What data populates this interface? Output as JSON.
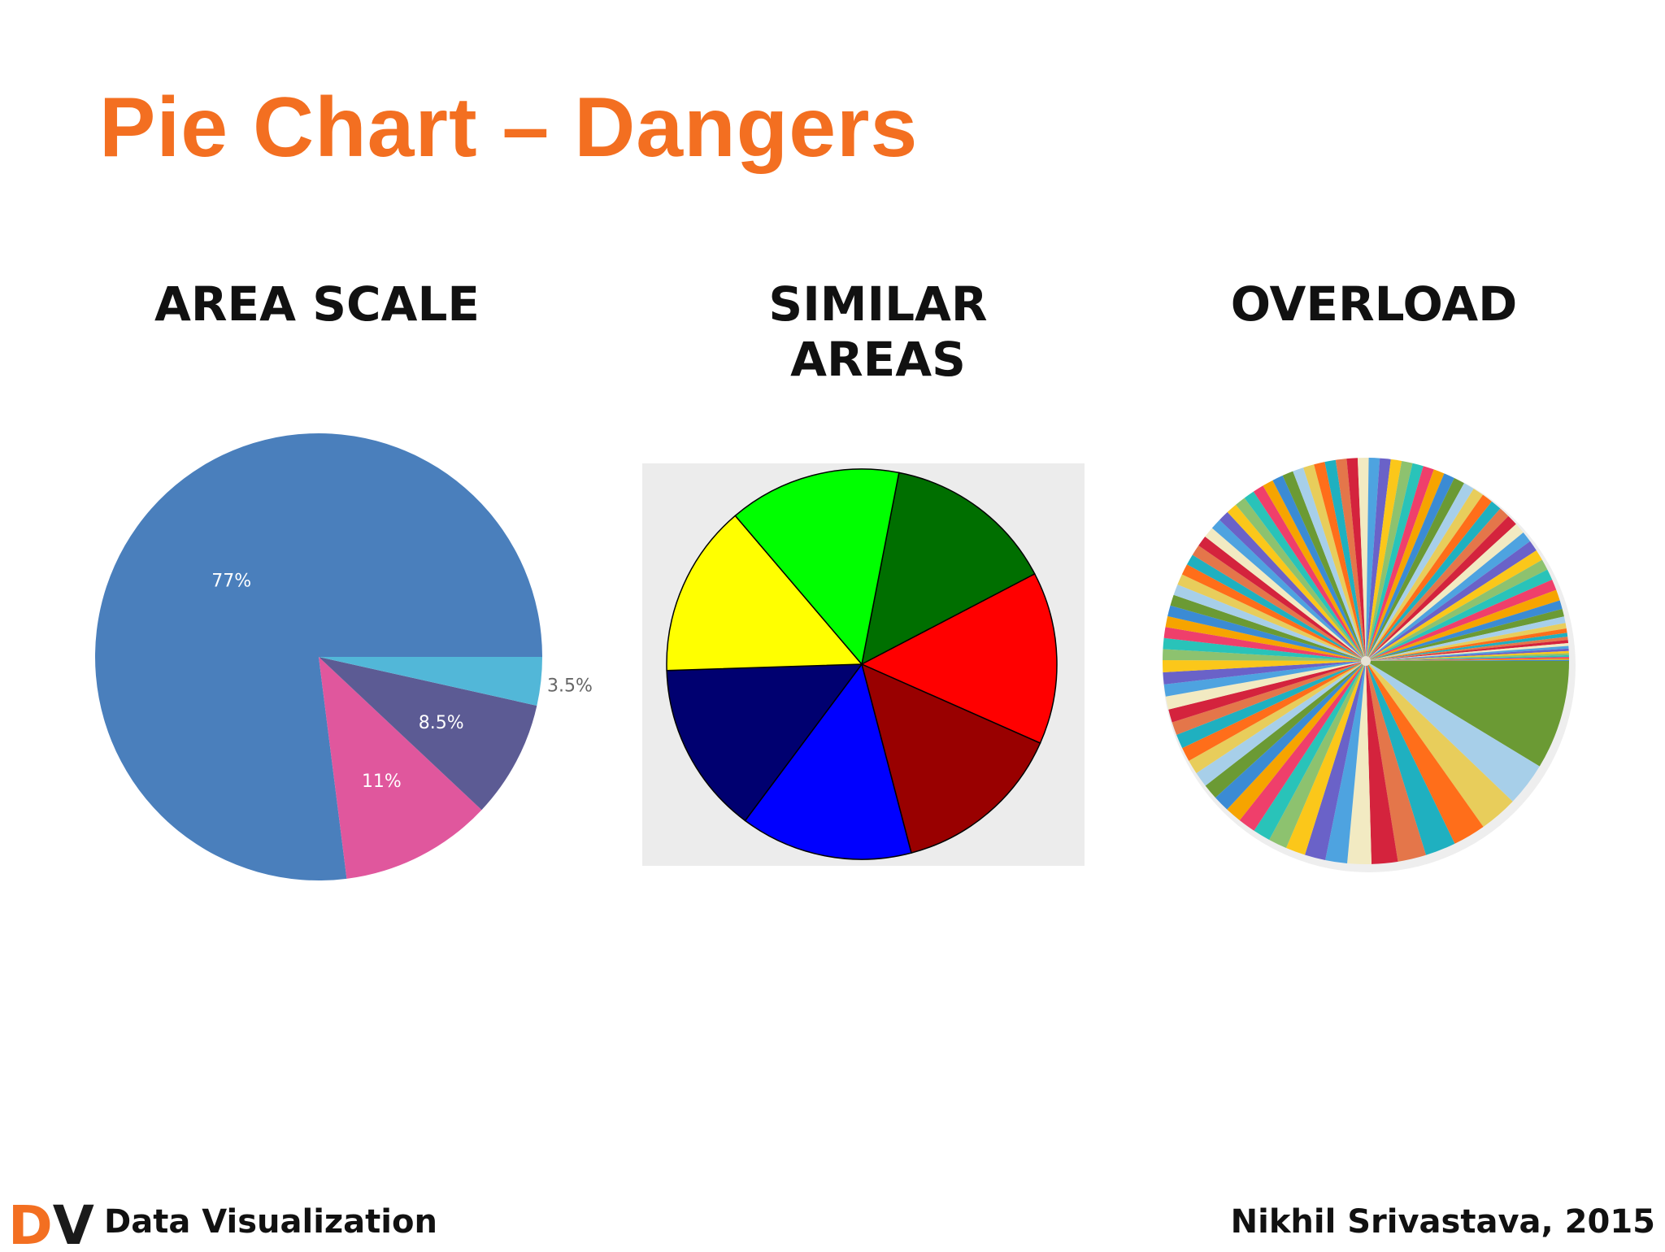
{
  "slide": {
    "title": "Pie Chart – Dangers",
    "footer_left": "Data Visualization",
    "footer_right": "Nikhil Srivastava, 2015",
    "logo_text": "DV"
  },
  "colors": {
    "title": "#f36f21",
    "logo_d": "#f36f21",
    "logo_v": "#1a1a1a"
  },
  "chart_data": [
    {
      "type": "pie",
      "heading": "AREA SCALE",
      "labels": [
        "77%",
        "11%",
        "8.5%",
        "3.5%"
      ],
      "values": [
        77,
        11,
        8.5,
        3.5
      ],
      "colors": [
        "#4a7fbc",
        "#e0579d",
        "#5c5b94",
        "#52b7d8"
      ],
      "start_angle_deg": 0,
      "direction": "counterclockwise",
      "label_placement": [
        "inside",
        "inside",
        "inside",
        "outside"
      ]
    },
    {
      "type": "pie",
      "heading": "SIMILAR AREAS",
      "values": [
        1,
        1,
        1,
        1,
        1,
        1,
        1
      ],
      "colors": [
        "#006f00",
        "#ff0000",
        "#990000",
        "#0000ff",
        "#000070",
        "#ffff00",
        "#00ff00"
      ],
      "start_angle_deg": -79,
      "direction": "clockwise",
      "background": "#ececec",
      "border": "#000000"
    },
    {
      "type": "pie",
      "heading": "OVERLOAD",
      "slice_count": 96,
      "values": [
        10,
        4,
        3.5,
        3,
        2.8,
        2.6,
        2.4,
        2.2,
        2,
        1.9,
        1.8,
        1.7,
        1.6,
        1.6,
        1.5,
        1.5,
        1.4,
        1.4,
        1.3,
        1.3,
        1.3,
        1.2,
        1.2,
        1.2,
        1.1,
        1.1,
        1.1,
        1,
        1,
        1,
        1,
        1,
        1,
        1,
        1,
        1,
        1,
        1,
        1,
        1,
        1,
        1,
        1,
        1,
        1,
        1,
        1,
        1,
        1,
        1,
        1,
        1,
        1,
        1,
        1,
        1,
        1,
        1,
        1,
        1,
        1,
        1,
        1,
        1,
        1,
        1,
        1,
        1,
        1,
        1,
        1,
        1,
        1,
        1,
        1,
        1,
        1,
        1,
        1,
        0.8,
        0.7,
        0.6,
        0.5,
        0.4,
        0.35,
        0.3,
        0.28,
        0.26,
        0.24,
        0.22,
        0.2,
        0.18,
        0.16,
        0.14,
        0.12,
        0.1
      ],
      "palette": [
        "#6b9a34",
        "#a7cfe9",
        "#e8cd5b",
        "#ff6e1a",
        "#1fb0c0",
        "#e4764a",
        "#d4233d",
        "#f2eac2",
        "#4ea3e0",
        "#6a62c8",
        "#fbc71a",
        "#8dc26f",
        "#29c3b9",
        "#ef3f6b",
        "#f6a400",
        "#3b8bd4"
      ],
      "start_angle_deg": 0,
      "direction": "clockwise"
    }
  ]
}
